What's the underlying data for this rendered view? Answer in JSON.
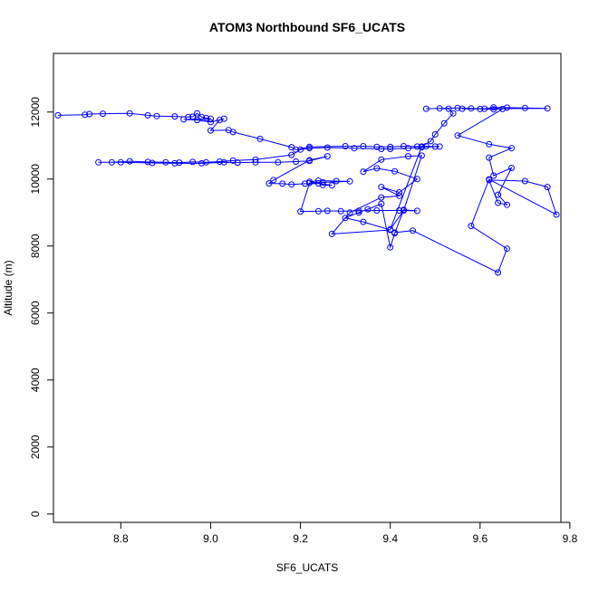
{
  "chart_data": {
    "type": "line",
    "title": "ATOM3 Northbound SF6_UCATS",
    "xlabel": "SF6_UCATS",
    "ylabel": "Altitude (m)",
    "xlim": [
      8.65,
      9.78
    ],
    "ylim": [
      -250,
      13750
    ],
    "x_ticks": [
      8.8,
      9.0,
      9.2,
      9.4,
      9.6,
      9.8
    ],
    "x_tick_labels": [
      "8.8",
      "9.0",
      "9.2",
      "9.4",
      "9.6",
      "9.8"
    ],
    "y_ticks": [
      0,
      2000,
      4000,
      6000,
      8000,
      10000,
      12000
    ],
    "y_tick_labels": [
      "0",
      "2000",
      "4000",
      "6000",
      "8000",
      "10000",
      "12000"
    ],
    "grid": false,
    "legend": "none",
    "colors": {
      "series": "#0000ff",
      "axis": "#000000"
    },
    "series": [
      {
        "points": [
          [
            8.66,
            11900
          ],
          [
            8.72,
            11920
          ],
          [
            8.73,
            11940
          ],
          [
            8.76,
            11950
          ],
          [
            8.82,
            11960
          ],
          [
            8.86,
            11900
          ],
          [
            8.88,
            11880
          ],
          [
            8.92,
            11870
          ],
          [
            8.95,
            11850
          ],
          [
            8.96,
            11860
          ],
          [
            8.97,
            11960
          ],
          [
            8.98,
            11850
          ],
          [
            8.99,
            11820
          ],
          [
            9.0,
            11800
          ],
          [
            8.94,
            11780
          ],
          [
            8.97,
            11760
          ],
          [
            9.0,
            11700
          ],
          [
            9.03,
            11800
          ],
          [
            9.02,
            11760
          ],
          [
            9.0,
            11450
          ],
          [
            9.04,
            11460
          ],
          [
            9.05,
            11400
          ],
          [
            9.11,
            11200
          ],
          [
            9.18,
            10950
          ],
          [
            9.19,
            10880
          ],
          [
            9.22,
            10960
          ],
          [
            9.3,
            10980
          ],
          [
            9.34,
            10980
          ],
          [
            9.37,
            10960
          ],
          [
            9.4,
            10960
          ],
          [
            9.43,
            10980
          ],
          [
            9.46,
            10970
          ],
          [
            9.48,
            10980
          ],
          [
            9.5,
            10970
          ],
          [
            9.51,
            10970
          ],
          [
            9.47,
            10950
          ],
          [
            9.44,
            10920
          ],
          [
            9.4,
            10900
          ],
          [
            9.38,
            10900
          ],
          [
            9.32,
            10920
          ],
          [
            9.26,
            10940
          ],
          [
            9.22,
            10920
          ],
          [
            9.2,
            10880
          ],
          [
            9.18,
            10720
          ],
          [
            9.1,
            10580
          ],
          [
            9.05,
            10550
          ],
          [
            9.02,
            10520
          ],
          [
            8.99,
            10500
          ],
          [
            8.96,
            10510
          ],
          [
            8.93,
            10490
          ],
          [
            8.9,
            10500
          ],
          [
            8.86,
            10510
          ],
          [
            8.82,
            10530
          ],
          [
            8.78,
            10500
          ],
          [
            8.75,
            10500
          ],
          [
            8.8,
            10500
          ],
          [
            8.87,
            10480
          ],
          [
            8.92,
            10470
          ],
          [
            8.98,
            10470
          ],
          [
            9.03,
            10500
          ],
          [
            9.06,
            10490
          ],
          [
            9.1,
            10500
          ],
          [
            9.15,
            10500
          ],
          [
            9.19,
            10520
          ],
          [
            9.22,
            10540
          ],
          [
            9.26,
            10680
          ],
          [
            9.22,
            10560
          ],
          [
            9.14,
            9970
          ],
          [
            9.13,
            9870
          ],
          [
            9.16,
            9860
          ],
          [
            9.18,
            9840
          ],
          [
            9.21,
            9860
          ],
          [
            9.24,
            9870
          ],
          [
            9.25,
            9820
          ],
          [
            9.27,
            9810
          ],
          [
            9.22,
            9920
          ],
          [
            9.24,
            9950
          ],
          [
            9.28,
            9940
          ],
          [
            9.31,
            9930
          ],
          [
            9.25,
            9900
          ],
          [
            9.22,
            9880
          ],
          [
            9.2,
            9030
          ],
          [
            9.24,
            9040
          ],
          [
            9.26,
            9050
          ],
          [
            9.29,
            9040
          ],
          [
            9.33,
            9050
          ],
          [
            9.37,
            9060
          ],
          [
            9.42,
            9060
          ],
          [
            9.46,
            9050
          ],
          [
            9.43,
            9080
          ],
          [
            9.41,
            8380
          ],
          [
            9.4,
            7960
          ],
          [
            9.38,
            9260
          ],
          [
            9.35,
            9100
          ],
          [
            9.33,
            9000
          ],
          [
            9.3,
            8840
          ],
          [
            9.34,
            8720
          ],
          [
            9.4,
            8480
          ],
          [
            9.27,
            8360
          ],
          [
            9.31,
            9000
          ],
          [
            9.38,
            9450
          ],
          [
            9.42,
            9500
          ],
          [
            9.38,
            9760
          ],
          [
            9.42,
            9600
          ],
          [
            9.46,
            10000
          ],
          [
            9.41,
            10230
          ],
          [
            9.37,
            10320
          ],
          [
            9.34,
            10220
          ],
          [
            9.38,
            10580
          ],
          [
            9.44,
            10680
          ],
          [
            9.47,
            10700
          ],
          [
            9.43,
            9060
          ],
          [
            9.4,
            8500
          ],
          [
            9.47,
            10970
          ],
          [
            9.49,
            11130
          ],
          [
            9.5,
            11330
          ],
          [
            9.52,
            11660
          ],
          [
            9.54,
            11960
          ],
          [
            9.53,
            12100
          ],
          [
            9.51,
            12110
          ],
          [
            9.48,
            12100
          ],
          [
            9.55,
            12120
          ],
          [
            9.58,
            12110
          ],
          [
            9.61,
            12100
          ],
          [
            9.63,
            12140
          ],
          [
            9.66,
            12130
          ],
          [
            9.7,
            12120
          ],
          [
            9.75,
            12110
          ],
          [
            9.56,
            12100
          ],
          [
            9.6,
            12090
          ],
          [
            9.63,
            12080
          ],
          [
            9.65,
            12090
          ],
          [
            9.55,
            11300
          ],
          [
            9.62,
            11040
          ],
          [
            9.67,
            10920
          ],
          [
            9.62,
            10640
          ],
          [
            9.63,
            10100
          ],
          [
            9.67,
            10330
          ],
          [
            9.64,
            9530
          ],
          [
            9.66,
            9230
          ],
          [
            9.64,
            9290
          ],
          [
            9.62,
            9970
          ],
          [
            9.7,
            9940
          ],
          [
            9.75,
            9760
          ],
          [
            9.77,
            8940
          ],
          [
            9.62,
            9990
          ],
          [
            9.58,
            8600
          ],
          [
            9.66,
            7920
          ],
          [
            9.64,
            7210
          ],
          [
            9.45,
            8460
          ],
          [
            9.41,
            8400
          ]
        ]
      }
    ]
  }
}
